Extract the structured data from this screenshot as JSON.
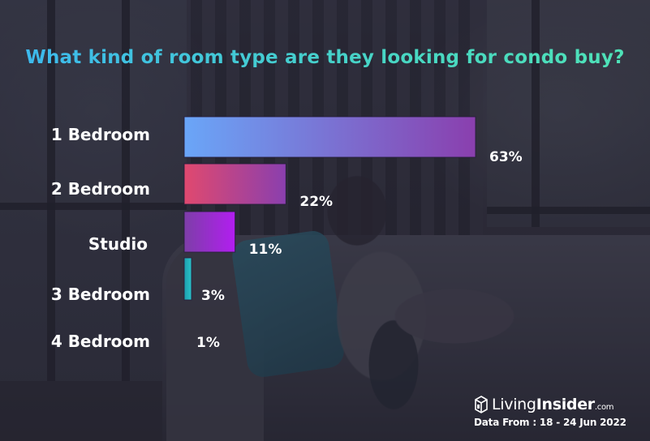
{
  "colors": {
    "title_gradient": [
      "#3cb8f0",
      "#4fe3b6"
    ],
    "bar_1_bedroom": [
      "#6aa6f8",
      "#8a3fae"
    ],
    "bar_2_bedroom": [
      "#e0496f",
      "#8a3fae"
    ],
    "bar_studio": [
      "#7d3ea8",
      "#b21ef0"
    ],
    "bar_3_bedroom": [
      "#1c9fae",
      "#2ac3c9"
    ]
  },
  "chart_data": {
    "type": "bar",
    "orientation": "horizontal",
    "title": "What kind of room type are they looking for condo buy?",
    "categories": [
      "1 Bedroom",
      "2 Bedroom",
      "Studio",
      "3 Bedroom",
      "4 Bedroom"
    ],
    "values": [
      63,
      22,
      11,
      3,
      1
    ],
    "value_labels": [
      "63%",
      "22%",
      "11%",
      "3%",
      "1%"
    ],
    "unit": "%",
    "grid": false,
    "legend": "none"
  },
  "brand": {
    "name_light": "Living",
    "name_bold": "Insider",
    "domain": ".com",
    "logo_icon": "cube-house-icon"
  },
  "source_text": "Data From : 18 - 24 Jun 2022"
}
